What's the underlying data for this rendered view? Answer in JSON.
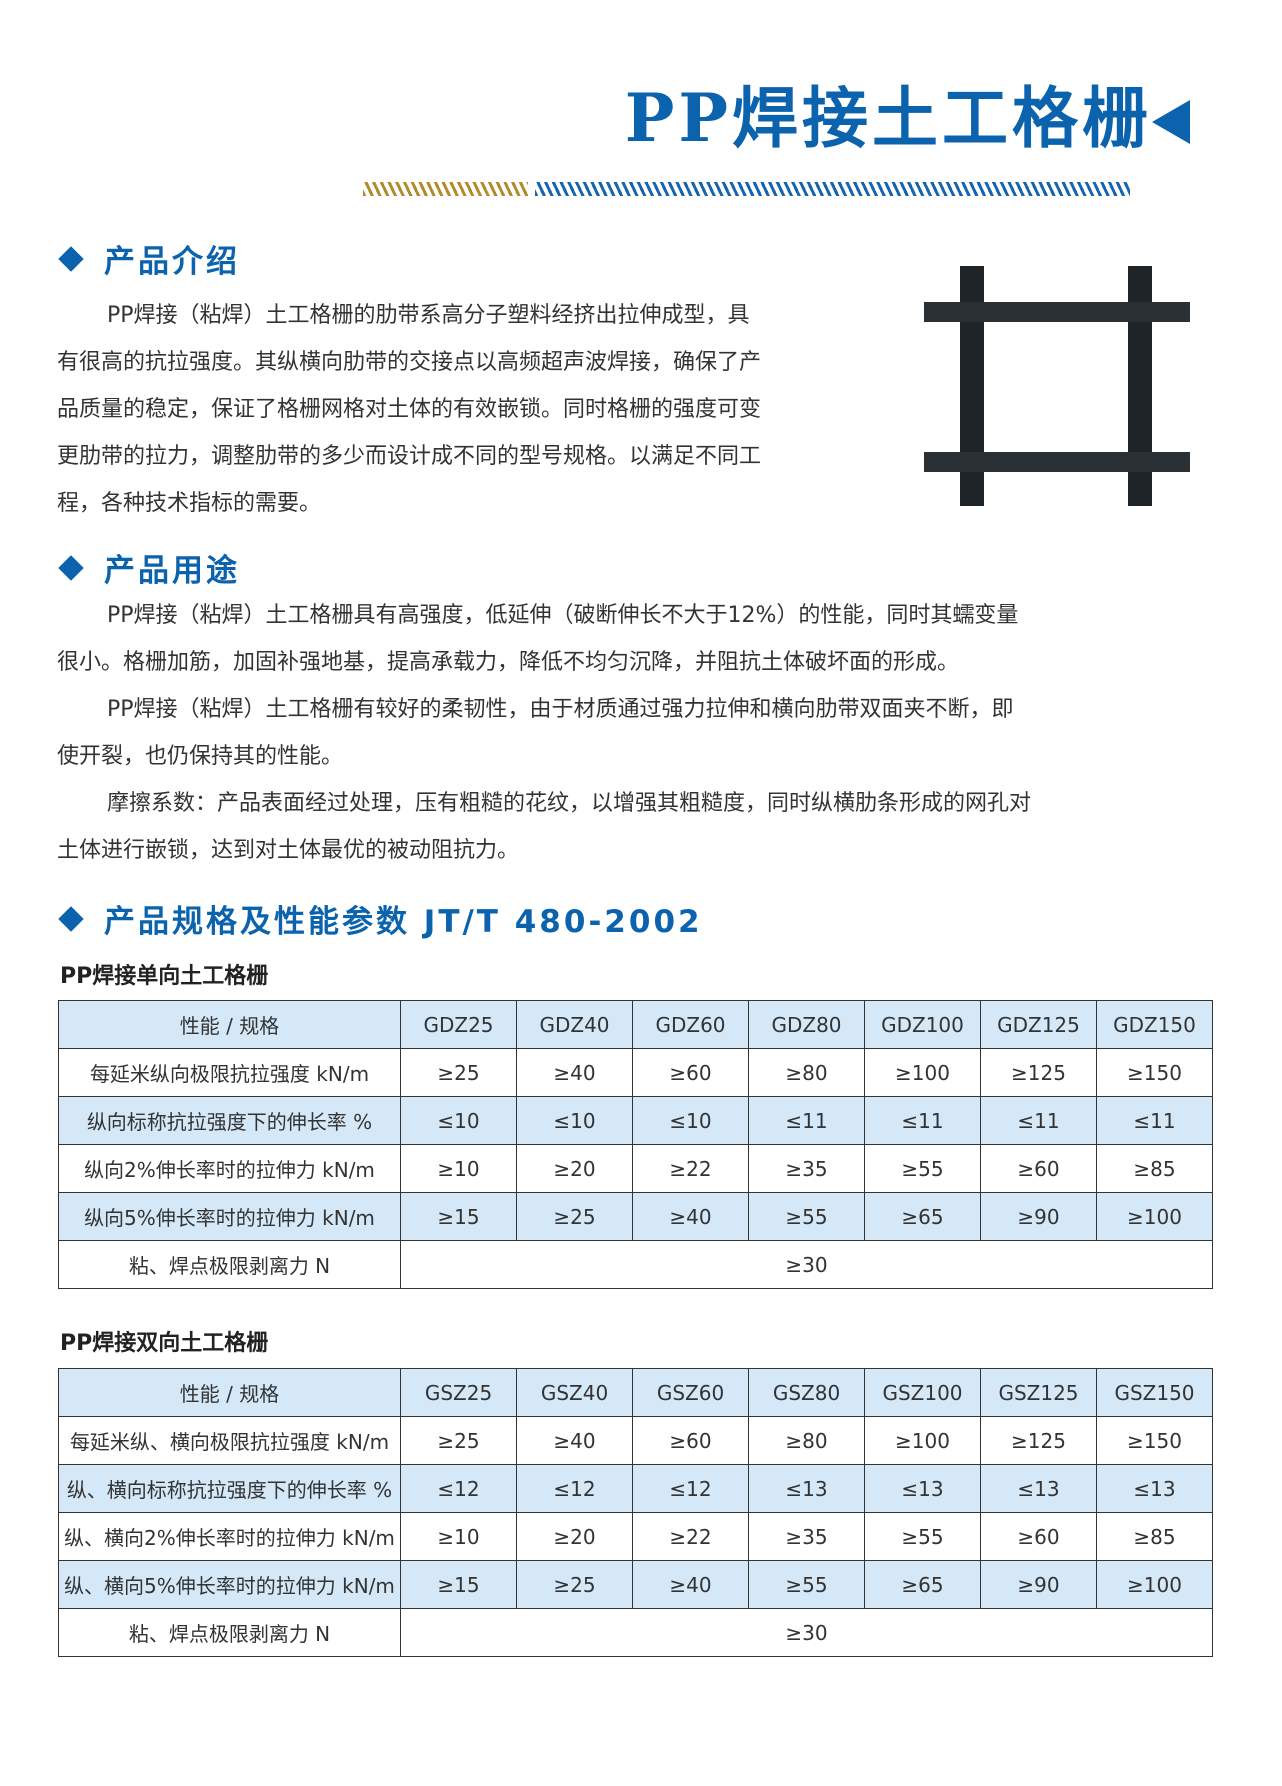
{
  "title": "PP焊接土工格栅",
  "colors": {
    "brand_blue": "#0b63ad",
    "gold": "#b48a2c",
    "row_highlight": "#d5e8f8"
  },
  "sections": {
    "intro": {
      "heading": "产品介绍",
      "lines": [
        "PP焊接（粘焊）土工格栅的肋带系高分子塑料经挤出拉伸成型，具",
        "有很高的抗拉强度。其纵横向肋带的交接点以高频超声波焊接，确保了产",
        "品质量的稳定，保证了格栅网格对土体的有效嵌锁。同时格栅的强度可变",
        "更肋带的拉力，调整肋带的多少而设计成不同的型号规格。以满足不同工",
        "程，各种技术指标的需要。"
      ]
    },
    "usage": {
      "heading": "产品用途",
      "lines": [
        "PP焊接（粘焊）土工格栅具有高强度，低延伸（破断伸长不大于12%）的性能，同时其蠕变量",
        "很小。格栅加筋，加固补强地基，提高承载力，降低不均匀沉降，并阻抗土体破坏面的形成。",
        "PP焊接（粘焊）土工格栅有较好的柔韧性，由于材质通过强力拉伸和横向肋带双面夹不断，即",
        "使开裂，也仍保持其的性能。",
        "摩擦系数：产品表面经过处理，压有粗糙的花纹，以增强其粗糙度，同时纵横肋条形成的网孔对",
        "土体进行嵌锁，达到对土体最优的被动阻抗力。"
      ]
    },
    "specs": {
      "heading": "产品规格及性能参数 JT/T 480-2002"
    }
  },
  "tables": [
    {
      "caption": "PP焊接单向土工格栅",
      "header": [
        "性能 / 规格",
        "GDZ25",
        "GDZ40",
        "GDZ60",
        "GDZ80",
        "GDZ100",
        "GDZ125",
        "GDZ150"
      ],
      "rows": [
        [
          "每延米纵向极限抗拉强度 kN/m",
          "≥25",
          "≥40",
          "≥60",
          "≥80",
          "≥100",
          "≥125",
          "≥150"
        ],
        [
          "纵向标称抗拉强度下的伸长率 %",
          "≤10",
          "≤10",
          "≤10",
          "≤11",
          "≤11",
          "≤11",
          "≤11"
        ],
        [
          "纵向2%伸长率时的拉伸力 kN/m",
          "≥10",
          "≥20",
          "≥22",
          "≥35",
          "≥55",
          "≥60",
          "≥85"
        ],
        [
          "纵向5%伸长率时的拉伸力 kN/m",
          "≥15",
          "≥25",
          "≥40",
          "≥55",
          "≥65",
          "≥90",
          "≥100"
        ]
      ],
      "last": [
        "粘、焊点极限剥离力 N",
        "≥30"
      ]
    },
    {
      "caption": "PP焊接双向土工格栅",
      "header": [
        "性能 / 规格",
        "GSZ25",
        "GSZ40",
        "GSZ60",
        "GSZ80",
        "GSZ100",
        "GSZ125",
        "GSZ150"
      ],
      "rows": [
        [
          "每延米纵、横向极限抗拉强度 kN/m",
          "≥25",
          "≥40",
          "≥60",
          "≥80",
          "≥100",
          "≥125",
          "≥150"
        ],
        [
          "纵、横向标称抗拉强度下的伸长率 %",
          "≤12",
          "≤12",
          "≤12",
          "≤13",
          "≤13",
          "≤13",
          "≤13"
        ],
        [
          "纵、横向2%伸长率时的拉伸力 kN/m",
          "≥10",
          "≥20",
          "≥22",
          "≥35",
          "≥55",
          "≥60",
          "≥85"
        ],
        [
          "纵、横向5%伸长率时的拉伸力 kN/m",
          "≥15",
          "≥25",
          "≥40",
          "≥55",
          "≥65",
          "≥90",
          "≥100"
        ]
      ],
      "last": [
        "粘、焊点极限剥离力 N",
        "≥30"
      ]
    }
  ]
}
